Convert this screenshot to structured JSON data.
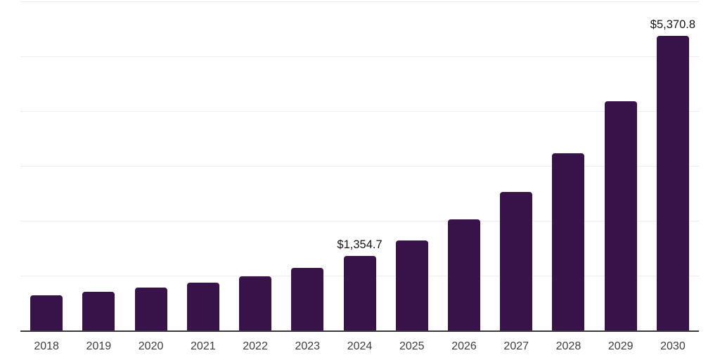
{
  "chart_data": {
    "type": "bar",
    "title": "",
    "xlabel": "",
    "ylabel": "",
    "categories": [
      "2018",
      "2019",
      "2020",
      "2021",
      "2022",
      "2023",
      "2024",
      "2025",
      "2026",
      "2027",
      "2028",
      "2029",
      "2030"
    ],
    "values": [
      640,
      705,
      785,
      870,
      985,
      1145,
      1354.7,
      1645,
      2025,
      2530,
      3230,
      4180,
      5370.8
    ],
    "bar_labels": [
      "",
      "",
      "",
      "",
      "",
      "",
      "$1,354.7",
      "",
      "",
      "",
      "",
      "",
      "$5,370.8"
    ],
    "ylim": [
      0,
      6000
    ],
    "gridline_step": 1000,
    "grid": true,
    "legend": false
  },
  "colors": {
    "bar": "#371349",
    "axis": "#3a3a3a",
    "gridline": "#ededed",
    "year_label": "#3d3d3d",
    "value_label": "#141414",
    "background": "#ffffff"
  }
}
